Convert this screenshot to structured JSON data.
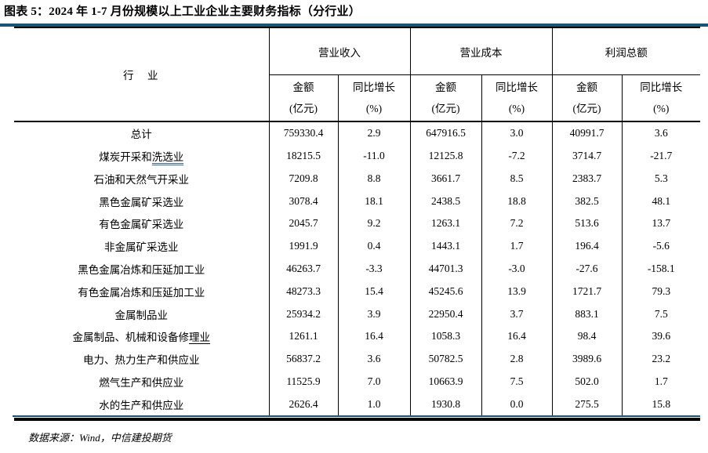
{
  "title": "图表 5：2024 年 1-7 月份规模以上工业企业主要财务指标（分行业）",
  "colors": {
    "accent_teal": "#175670",
    "line_black": "#000000",
    "underline_blue": "#2e66c9"
  },
  "table": {
    "industry_header": "行　业",
    "group_headers": [
      "营业收入",
      "营业成本",
      "利润总额"
    ],
    "sub_header_amount": [
      "金额",
      "(亿元)"
    ],
    "sub_header_growth": [
      "同比增长",
      "(%)"
    ],
    "rows": [
      {
        "name": "总计",
        "values": [
          "759330.4",
          "2.9",
          "647916.5",
          "3.0",
          "40991.7",
          "3.6"
        ]
      },
      {
        "name": "煤炭开采和洗选业",
        "underlined_suffix": "洗选业",
        "underline_style": "blue-double",
        "values": [
          "18215.5",
          "-11.0",
          "12125.8",
          "-7.2",
          "3714.7",
          "-21.7"
        ]
      },
      {
        "name": "石油和天然气开采业",
        "values": [
          "7209.8",
          "8.8",
          "3661.7",
          "8.5",
          "2383.7",
          "5.3"
        ]
      },
      {
        "name": "黑色金属矿采选业",
        "values": [
          "3078.4",
          "18.1",
          "2438.5",
          "18.8",
          "382.5",
          "48.1"
        ]
      },
      {
        "name": "有色金属矿采选业",
        "values": [
          "2045.7",
          "9.2",
          "1263.1",
          "7.2",
          "513.6",
          "13.7"
        ]
      },
      {
        "name": "非金属矿采选业",
        "values": [
          "1991.9",
          "0.4",
          "1443.1",
          "1.7",
          "196.4",
          "-5.6"
        ]
      },
      {
        "name": "黑色金属冶炼和压延加工业",
        "values": [
          "46263.7",
          "-3.3",
          "44701.3",
          "-3.0",
          "-27.6",
          "-158.1"
        ]
      },
      {
        "name": "有色金属冶炼和压延加工业",
        "bold": true,
        "values": [
          "48273.3",
          "15.4",
          "45245.6",
          "13.9",
          "1721.7",
          "79.3"
        ]
      },
      {
        "name": "金属制品业",
        "bold": true,
        "values": [
          "25934.2",
          "3.9",
          "22950.4",
          "3.7",
          "883.1",
          "7.5"
        ]
      },
      {
        "name": "金属制品、机械和设备修理业",
        "underlined_suffix": "理业",
        "underline_style": "black-single",
        "values": [
          "1261.1",
          "16.4",
          "1058.3",
          "16.4",
          "98.4",
          "39.6"
        ]
      },
      {
        "name": "电力、热力生产和供应业",
        "values": [
          "56837.2",
          "3.6",
          "50782.5",
          "2.8",
          "3989.6",
          "23.2"
        ]
      },
      {
        "name": "燃气生产和供应业",
        "values": [
          "11525.9",
          "7.0",
          "10663.9",
          "7.5",
          "502.0",
          "1.7"
        ]
      },
      {
        "name": "水的生产和供应业",
        "values": [
          "2626.4",
          "1.0",
          "1930.8",
          "0.0",
          "275.5",
          "15.8"
        ]
      }
    ]
  },
  "footer": "数据来源：Wind，中信建投期货"
}
